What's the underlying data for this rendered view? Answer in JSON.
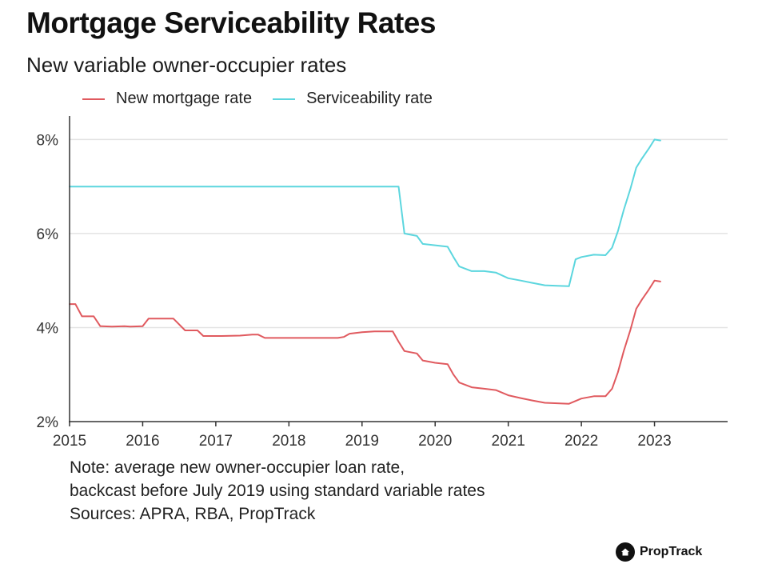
{
  "colors": {
    "mortgage": "#e05a5f",
    "serviceability": "#5cd6de",
    "grid": "#e3e3e3",
    "axis": "#333333"
  },
  "chart_data": {
    "type": "line",
    "title": "Mortgage Serviceability Rates",
    "subtitle": "New variable owner-occupier rates",
    "xlabel": "",
    "ylabel": "",
    "xlim": [
      2015,
      2024
    ],
    "ylim": [
      2,
      8.5
    ],
    "x_ticks": [
      "2015",
      "2016",
      "2017",
      "2018",
      "2019",
      "2020",
      "2021",
      "2022",
      "2023"
    ],
    "y_ticks": [
      "2%",
      "4%",
      "6%",
      "8%"
    ],
    "y_tick_values": [
      2,
      4,
      6,
      8
    ],
    "grid": true,
    "legend_position": "top-left",
    "series": [
      {
        "name": "New mortgage rate",
        "color": "#e05a5f",
        "points": [
          [
            2015.0,
            4.5
          ],
          [
            2015.08,
            4.5
          ],
          [
            2015.17,
            4.24
          ],
          [
            2015.33,
            4.24
          ],
          [
            2015.42,
            4.03
          ],
          [
            2015.58,
            4.02
          ],
          [
            2015.75,
            4.03
          ],
          [
            2015.83,
            4.02
          ],
          [
            2016.0,
            4.03
          ],
          [
            2016.08,
            4.19
          ],
          [
            2016.33,
            4.19
          ],
          [
            2016.42,
            4.19
          ],
          [
            2016.58,
            3.94
          ],
          [
            2016.75,
            3.94
          ],
          [
            2016.83,
            3.82
          ],
          [
            2017.08,
            3.82
          ],
          [
            2017.33,
            3.83
          ],
          [
            2017.5,
            3.85
          ],
          [
            2017.58,
            3.85
          ],
          [
            2017.67,
            3.78
          ],
          [
            2018.0,
            3.78
          ],
          [
            2018.33,
            3.78
          ],
          [
            2018.67,
            3.78
          ],
          [
            2018.75,
            3.8
          ],
          [
            2018.83,
            3.87
          ],
          [
            2019.0,
            3.9
          ],
          [
            2019.17,
            3.92
          ],
          [
            2019.33,
            3.92
          ],
          [
            2019.42,
            3.92
          ],
          [
            2019.5,
            3.7
          ],
          [
            2019.58,
            3.5
          ],
          [
            2019.75,
            3.45
          ],
          [
            2019.83,
            3.3
          ],
          [
            2020.0,
            3.25
          ],
          [
            2020.17,
            3.22
          ],
          [
            2020.25,
            3.0
          ],
          [
            2020.33,
            2.83
          ],
          [
            2020.5,
            2.73
          ],
          [
            2020.67,
            2.7
          ],
          [
            2020.83,
            2.67
          ],
          [
            2021.0,
            2.56
          ],
          [
            2021.17,
            2.5
          ],
          [
            2021.33,
            2.45
          ],
          [
            2021.5,
            2.4
          ],
          [
            2021.67,
            2.39
          ],
          [
            2021.83,
            2.38
          ],
          [
            2022.0,
            2.49
          ],
          [
            2022.17,
            2.54
          ],
          [
            2022.33,
            2.54
          ],
          [
            2022.42,
            2.7
          ],
          [
            2022.5,
            3.05
          ],
          [
            2022.58,
            3.5
          ],
          [
            2022.67,
            3.95
          ],
          [
            2022.75,
            4.4
          ],
          [
            2022.83,
            4.6
          ],
          [
            2022.92,
            4.8
          ],
          [
            2023.0,
            5.0
          ],
          [
            2023.08,
            4.98
          ]
        ]
      },
      {
        "name": "Serviceability rate",
        "color": "#5cd6de",
        "points": [
          [
            2015.0,
            7.0
          ],
          [
            2016.0,
            7.0
          ],
          [
            2017.0,
            7.0
          ],
          [
            2018.0,
            7.0
          ],
          [
            2019.0,
            7.0
          ],
          [
            2019.5,
            7.0
          ],
          [
            2019.58,
            6.0
          ],
          [
            2019.75,
            5.95
          ],
          [
            2019.83,
            5.78
          ],
          [
            2020.0,
            5.75
          ],
          [
            2020.17,
            5.72
          ],
          [
            2020.25,
            5.5
          ],
          [
            2020.33,
            5.3
          ],
          [
            2020.5,
            5.2
          ],
          [
            2020.67,
            5.2
          ],
          [
            2020.83,
            5.17
          ],
          [
            2021.0,
            5.05
          ],
          [
            2021.17,
            5.0
          ],
          [
            2021.33,
            4.95
          ],
          [
            2021.5,
            4.9
          ],
          [
            2021.67,
            4.89
          ],
          [
            2021.83,
            4.88
          ],
          [
            2021.92,
            5.45
          ],
          [
            2022.0,
            5.5
          ],
          [
            2022.17,
            5.55
          ],
          [
            2022.33,
            5.54
          ],
          [
            2022.42,
            5.7
          ],
          [
            2022.5,
            6.05
          ],
          [
            2022.58,
            6.5
          ],
          [
            2022.67,
            6.95
          ],
          [
            2022.75,
            7.4
          ],
          [
            2022.83,
            7.6
          ],
          [
            2022.92,
            7.8
          ],
          [
            2023.0,
            8.0
          ],
          [
            2023.08,
            7.98
          ]
        ]
      }
    ]
  },
  "notes": [
    "Note: average new owner-occupier loan rate,",
    "backcast before July 2019 using standard variable rates",
    "Sources: APRA, RBA, PropTrack"
  ],
  "brand": {
    "name": "PropTrack",
    "icon": "house-icon"
  }
}
